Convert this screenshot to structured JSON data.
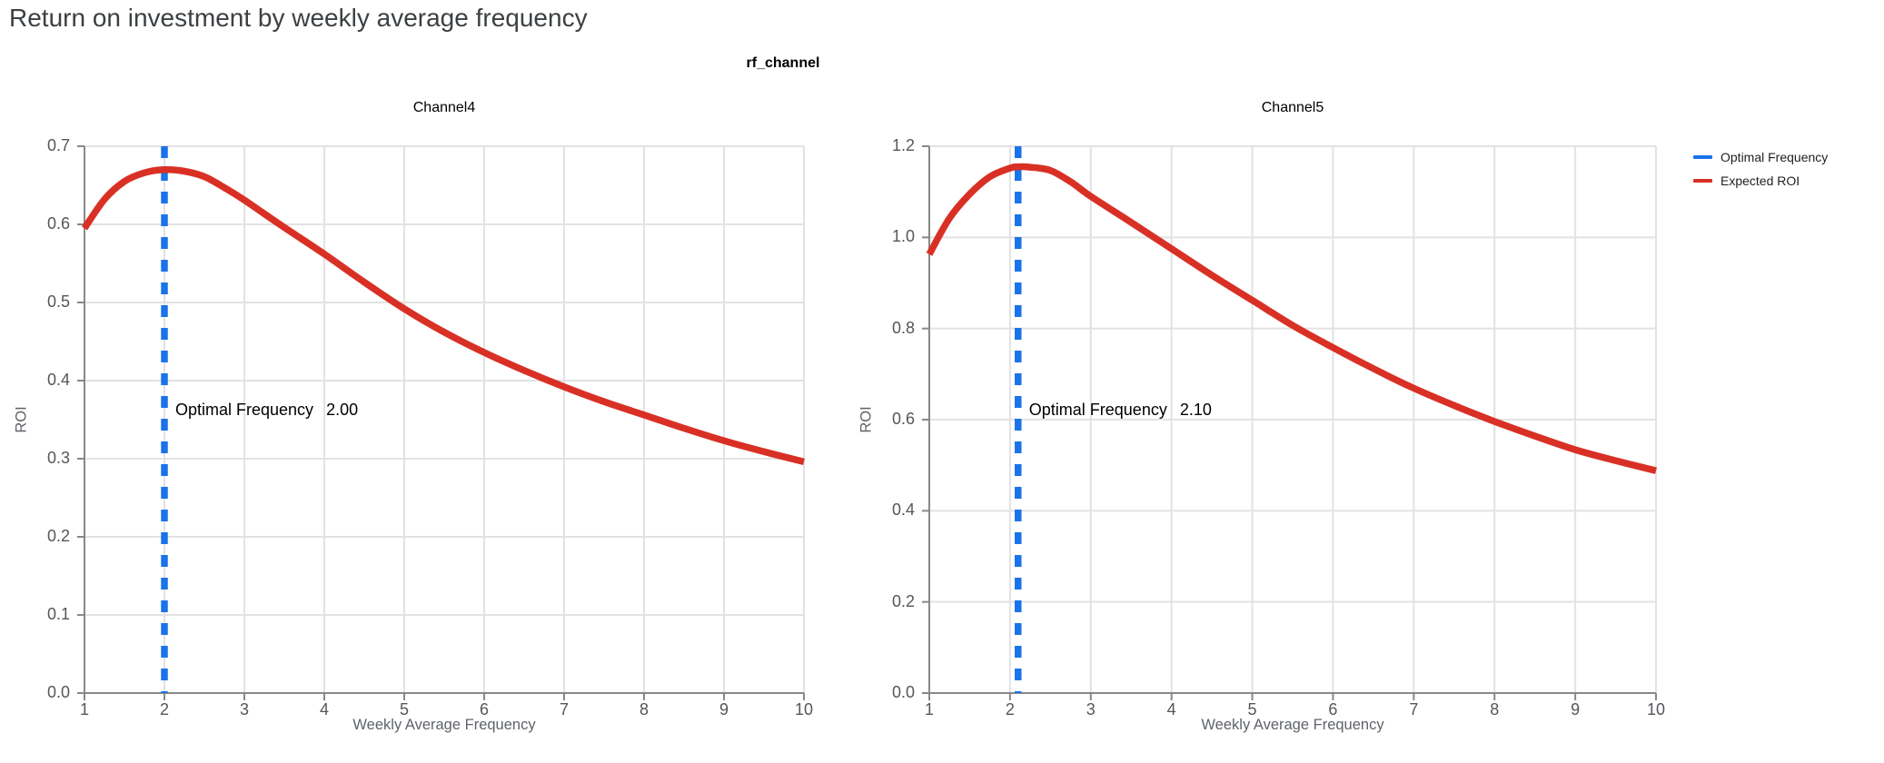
{
  "header": {
    "title": "Return on investment by weekly average frequency"
  },
  "legend": {
    "items": [
      {
        "label": "Optimal Frequency",
        "color": "#1a73e8"
      },
      {
        "label": "Expected ROI",
        "color": "#d93025"
      }
    ]
  },
  "chart_data": {
    "type": "line",
    "facet_title": "rf_channel",
    "xlabel": "Weekly Average Frequency",
    "ylabel": "ROI",
    "colors": {
      "expected_roi": "#d93025",
      "optimal_frequency": "#1a73e8",
      "gridline": "#e2e2e2",
      "axis": "#888888"
    },
    "panels": [
      {
        "title": "Channel4",
        "optimal_frequency": 2.0,
        "annotation": {
          "label": "Optimal Frequency",
          "value": "2.00"
        },
        "xlim": [
          1,
          10
        ],
        "ylim": [
          0,
          0.7
        ],
        "x_ticks": [
          "1",
          "2",
          "3",
          "4",
          "5",
          "6",
          "7",
          "8",
          "9",
          "10"
        ],
        "y_ticks": [
          "0.0",
          "0.1",
          "0.2",
          "0.3",
          "0.4",
          "0.5",
          "0.6",
          "0.7"
        ],
        "expected_roi_points": [
          [
            1,
            0.595
          ],
          [
            1.25,
            0.632
          ],
          [
            1.5,
            0.655
          ],
          [
            1.75,
            0.666
          ],
          [
            2,
            0.67
          ],
          [
            2.25,
            0.668
          ],
          [
            2.5,
            0.661
          ],
          [
            2.75,
            0.647
          ],
          [
            3,
            0.631
          ],
          [
            3.5,
            0.596
          ],
          [
            4,
            0.562
          ],
          [
            4.5,
            0.526
          ],
          [
            5,
            0.492
          ],
          [
            5.5,
            0.462
          ],
          [
            6,
            0.436
          ],
          [
            6.5,
            0.413
          ],
          [
            7,
            0.392
          ],
          [
            7.5,
            0.373
          ],
          [
            8,
            0.356
          ],
          [
            8.5,
            0.339
          ],
          [
            9,
            0.323
          ],
          [
            9.5,
            0.309
          ],
          [
            10,
            0.296
          ]
        ]
      },
      {
        "title": "Channel5",
        "optimal_frequency": 2.1,
        "annotation": {
          "label": "Optimal Frequency",
          "value": "2.10"
        },
        "xlim": [
          1,
          10
        ],
        "ylim": [
          0,
          1.2
        ],
        "x_ticks": [
          "1",
          "2",
          "3",
          "4",
          "5",
          "6",
          "7",
          "8",
          "9",
          "10"
        ],
        "y_ticks": [
          "0.0",
          "0.2",
          "0.4",
          "0.6",
          "0.8",
          "1.0",
          "1.2"
        ],
        "expected_roi_points": [
          [
            1,
            0.963
          ],
          [
            1.25,
            1.042
          ],
          [
            1.5,
            1.095
          ],
          [
            1.75,
            1.133
          ],
          [
            2,
            1.152
          ],
          [
            2.1,
            1.155
          ],
          [
            2.25,
            1.154
          ],
          [
            2.5,
            1.147
          ],
          [
            2.75,
            1.122
          ],
          [
            3,
            1.09
          ],
          [
            3.5,
            1.033
          ],
          [
            4,
            0.975
          ],
          [
            4.5,
            0.917
          ],
          [
            5,
            0.862
          ],
          [
            5.5,
            0.807
          ],
          [
            6,
            0.758
          ],
          [
            6.5,
            0.712
          ],
          [
            7,
            0.669
          ],
          [
            7.5,
            0.631
          ],
          [
            8,
            0.596
          ],
          [
            8.5,
            0.564
          ],
          [
            9,
            0.534
          ],
          [
            9.5,
            0.51
          ],
          [
            10,
            0.488
          ]
        ]
      }
    ]
  }
}
